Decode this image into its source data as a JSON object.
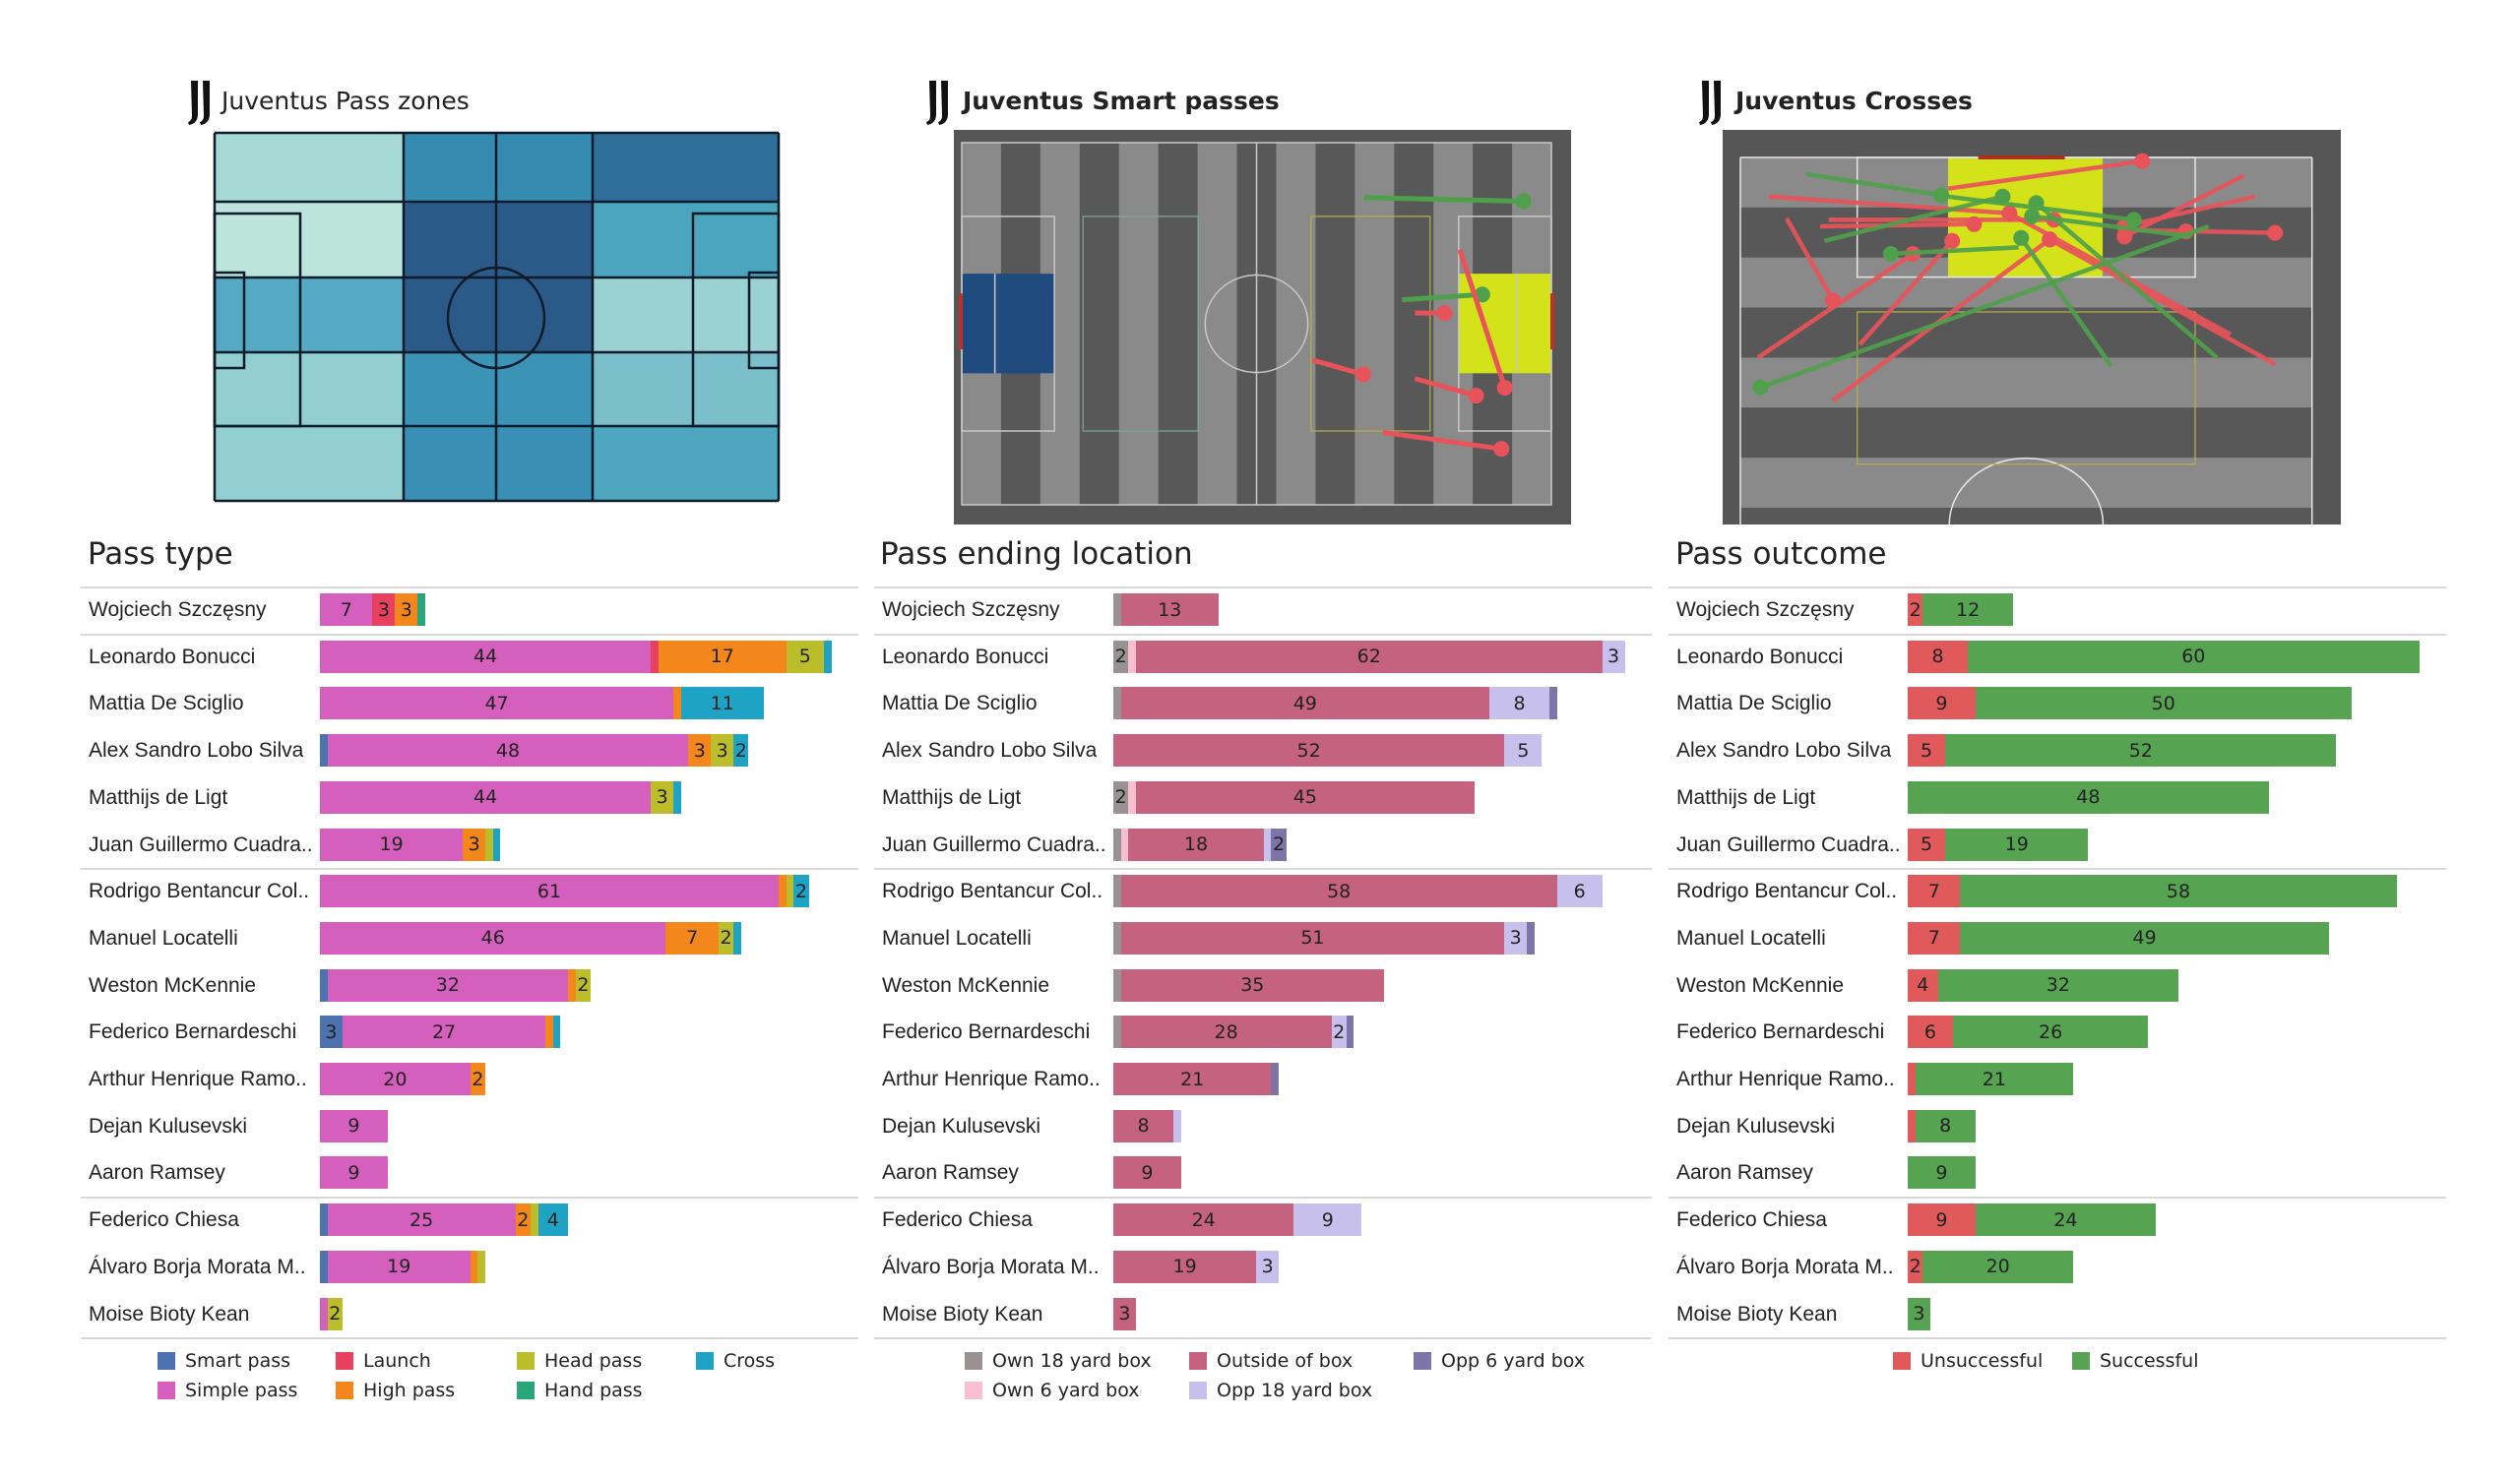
{
  "panels": [
    {
      "title": "Juventus Pass zones",
      "bold": false
    },
    {
      "title": "Juventus Smart passes",
      "bold": true
    },
    {
      "title": "Juventus Crosses",
      "bold": true
    }
  ],
  "players": [
    "Wojciech  Szczęsny",
    "Leonardo Bonucci",
    "Mattia De Sciglio",
    "Alex Sandro Lobo Silva",
    "Matthijs de Ligt",
    "Juan Guillermo Cuadra..",
    "Rodrigo Bentancur Col..",
    "Manuel Locatelli",
    "Weston  McKennie",
    "Federico Bernardeschi",
    "Arthur Henrique Ramo..",
    "Dejan Kulusevski",
    "Aaron Ramsey",
    "Federico Chiesa",
    "Álvaro Borja Morata M..",
    "Moise Bioty Kean"
  ],
  "pass_zones": {
    "rows": 5,
    "columns": [
      "left third",
      "middle left",
      "middle right",
      "right third"
    ],
    "cell_colors": [
      [
        "#a6d8d4",
        "#368cb0",
        "#368cb0",
        "#2e6e98"
      ],
      [
        "#bce4da",
        "#2c5a88",
        "#2c5a88",
        "#4ba5bd"
      ],
      [
        "#55a9c2",
        "#2c5a88",
        "#2c5a88",
        "#9bd1d2"
      ],
      [
        "#93cfd0",
        "#3b93b5",
        "#3b93b5",
        "#7bbfcb"
      ],
      [
        "#93cfd0",
        "#3990b4",
        "#3990b4",
        "#4ea7be"
      ]
    ]
  },
  "smart_passes": {
    "pitch_length_m": 105,
    "pitch_width_m": 68,
    "passes": [
      {
        "x1": 71.5,
        "y1": 10.3,
        "x2": 100,
        "y2": 11,
        "outcome": "successful"
      },
      {
        "x1": 78.4,
        "y1": 29.5,
        "x2": 92.7,
        "y2": 28.5,
        "outcome": "successful"
      },
      {
        "x1": 80.7,
        "y1": 32,
        "x2": 86,
        "y2": 32,
        "outcome": "unsuccessful"
      },
      {
        "x1": 62.4,
        "y1": 40.8,
        "x2": 71.5,
        "y2": 43.5,
        "outcome": "unsuccessful"
      },
      {
        "x1": 80.7,
        "y1": 44.3,
        "x2": 91.6,
        "y2": 47.5,
        "outcome": "unsuccessful"
      },
      {
        "x1": 88.7,
        "y1": 20.1,
        "x2": 96.7,
        "y2": 46
      },
      {
        "x1": 75,
        "y1": 54.4,
        "x2": 96.1,
        "y2": 57.5,
        "outcome": "unsuccessful"
      }
    ]
  },
  "crosses": {
    "passes": [
      {
        "x1": 24.7,
        "y1": 4.3,
        "x2": 47.8,
        "y2": 0.5,
        "outcome": "unsuccessful"
      },
      {
        "x1": 3.4,
        "y1": 5.4,
        "x2": 32.0,
        "y2": 7.7,
        "outcome": "unsuccessful"
      },
      {
        "x1": 9.5,
        "y1": 9.5,
        "x2": 27.8,
        "y2": 9.2,
        "outcome": "unsuccessful"
      },
      {
        "x1": 10.5,
        "y1": 8.6,
        "x2": 37.3,
        "y2": 8.6,
        "outcome": "unsuccessful"
      },
      {
        "x1": 5.5,
        "y1": 8.4,
        "x2": 11.0,
        "y2": 19.7,
        "outcome": "unsuccessful"
      },
      {
        "x1": 2.1,
        "y1": 27.6,
        "x2": 20.5,
        "y2": 13.3,
        "outcome": "unsuccessful"
      },
      {
        "x1": 14.2,
        "y1": 25.8,
        "x2": 25.2,
        "y2": 11.5,
        "outcome": "unsuccessful"
      },
      {
        "x1": 11.0,
        "y1": 33.5,
        "x2": 36.8,
        "y2": 11.3,
        "outcome": "unsuccessful"
      },
      {
        "x1": 63.6,
        "y1": 28.5,
        "x2": 36.8,
        "y2": 11.3,
        "outcome": "unsuccessful"
      },
      {
        "x1": 58.3,
        "y1": 24.4,
        "x2": 32.0,
        "y2": 7.7,
        "outcome": "unsuccessful"
      },
      {
        "x1": 59.9,
        "y1": 2.5,
        "x2": 45.7,
        "y2": 10.9,
        "outcome": "unsuccessful"
      },
      {
        "x1": 61.2,
        "y1": 5.4,
        "x2": 45.7,
        "y2": 9.5,
        "outcome": "unsuccessful"
      },
      {
        "x1": 45.7,
        "y1": 10.0,
        "x2": 63.6,
        "y2": 10.4,
        "outcome": "unsuccessful"
      },
      {
        "x1": 52.5,
        "y1": 10.2,
        "x2": 53.0,
        "y2": 10.2,
        "outcome": "unsuccessful"
      },
      {
        "x1": 7.9,
        "y1": 2.3,
        "x2": 23.9,
        "y2": 5.2,
        "outcome": "successful"
      },
      {
        "x1": 24.7,
        "y1": 5.4,
        "x2": 46.8,
        "y2": 8.6,
        "outcome": "successful"
      },
      {
        "x1": 10.0,
        "y1": 11.5,
        "x2": 31.2,
        "y2": 5.4,
        "outcome": "successful"
      },
      {
        "x1": 55.7,
        "y1": 9.5,
        "x2": 2.4,
        "y2": 31.7,
        "outcome": "successful"
      },
      {
        "x1": 44.1,
        "y1": 28.7,
        "x2": 33.4,
        "y2": 11.1,
        "outcome": "successful"
      },
      {
        "x1": 56.7,
        "y1": 27.6,
        "x2": 35.2,
        "y2": 6.3,
        "outcome": "successful"
      },
      {
        "x1": 33.1,
        "y1": 12.4,
        "x2": 17.9,
        "y2": 13.3,
        "outcome": "successful"
      },
      {
        "x1": 53.6,
        "y1": 10.9,
        "x2": 34.7,
        "y2": 8.1,
        "outcome": "successful"
      }
    ]
  },
  "chart_data": [
    {
      "type": "bar",
      "orientation": "horizontal",
      "stacked": true,
      "title": "Pass type",
      "series": [
        {
          "name": "Smart pass",
          "color": "#4c72b0",
          "values": [
            0,
            0,
            0,
            1,
            0,
            0,
            0,
            0,
            1,
            3,
            0,
            0,
            0,
            1,
            1,
            0
          ]
        },
        {
          "name": "Simple pass",
          "color": "#d55fbd",
          "values": [
            7,
            44,
            47,
            48,
            44,
            19,
            61,
            46,
            32,
            27,
            20,
            9,
            9,
            25,
            19,
            1
          ]
        },
        {
          "name": "Launch",
          "color": "#e8405f",
          "values": [
            3,
            1,
            0,
            0,
            0,
            0,
            0,
            0,
            0,
            0,
            0,
            0,
            0,
            0,
            0,
            0
          ]
        },
        {
          "name": "High pass",
          "color": "#f4871c",
          "values": [
            3,
            17,
            1,
            3,
            0,
            3,
            1,
            7,
            1,
            1,
            2,
            0,
            0,
            2,
            1,
            0
          ]
        },
        {
          "name": "Head pass",
          "color": "#bcbd2a",
          "values": [
            0,
            5,
            0,
            3,
            3,
            1,
            1,
            2,
            2,
            0,
            0,
            0,
            0,
            1,
            1,
            2
          ]
        },
        {
          "name": "Hand pass",
          "color": "#2aa57a",
          "values": [
            1,
            0,
            0,
            0,
            0,
            0,
            0,
            0,
            0,
            0,
            0,
            0,
            0,
            0,
            0,
            0
          ]
        },
        {
          "name": "Cross",
          "color": "#1fa3c4",
          "values": [
            0,
            1,
            11,
            2,
            1,
            1,
            2,
            1,
            0,
            1,
            0,
            0,
            0,
            4,
            0,
            0
          ]
        }
      ]
    },
    {
      "type": "bar",
      "orientation": "horizontal",
      "stacked": true,
      "title": "Pass ending location",
      "series": [
        {
          "name": "Own 18 yard box",
          "color": "#9a9292",
          "values": [
            1,
            2,
            1,
            0,
            2,
            1,
            1,
            1,
            1,
            1,
            0,
            0,
            0,
            0,
            0,
            0
          ]
        },
        {
          "name": "Own 6 yard box",
          "color": "#f8bfd2",
          "values": [
            0,
            1,
            0,
            0,
            1,
            1,
            0,
            0,
            0,
            0,
            0,
            0,
            0,
            0,
            0,
            0
          ]
        },
        {
          "name": "Outside of box",
          "color": "#c4627f",
          "values": [
            13,
            62,
            49,
            52,
            45,
            18,
            58,
            51,
            35,
            28,
            21,
            8,
            9,
            24,
            19,
            3
          ]
        },
        {
          "name": "Opp 18 yard box",
          "color": "#c8c0ec",
          "values": [
            0,
            3,
            8,
            5,
            0,
            1,
            6,
            3,
            0,
            2,
            0,
            1,
            0,
            9,
            3,
            0
          ]
        },
        {
          "name": "Opp 6 yard box",
          "color": "#7d74a8",
          "values": [
            0,
            0,
            1,
            0,
            0,
            2,
            0,
            1,
            0,
            1,
            1,
            0,
            0,
            0,
            0,
            0
          ]
        }
      ]
    },
    {
      "type": "bar",
      "orientation": "horizontal",
      "stacked": true,
      "title": "Pass outcome",
      "series": [
        {
          "name": "Unsuccessful",
          "color": "#e05a5c",
          "values": [
            2,
            8,
            9,
            5,
            0,
            5,
            7,
            7,
            4,
            6,
            1,
            1,
            0,
            9,
            2,
            0
          ]
        },
        {
          "name": "Successful",
          "color": "#56a352",
          "values": [
            12,
            60,
            50,
            52,
            48,
            19,
            58,
            49,
            32,
            26,
            21,
            8,
            9,
            24,
            20,
            3
          ]
        }
      ]
    }
  ],
  "legends": [
    {
      "rows": [
        [
          "Smart pass",
          "Launch",
          "Head pass",
          "Cross"
        ],
        [
          "Simple pass",
          "High pass",
          "Hand pass"
        ]
      ]
    },
    {
      "rows": [
        [
          "Own 18 yard box",
          "Outside of box",
          "Opp 6 yard box"
        ],
        [
          "Own 6 yard box",
          "Opp 18 yard box"
        ]
      ]
    },
    {
      "rows": [
        [
          "Unsuccessful",
          "Successful"
        ]
      ]
    }
  ]
}
